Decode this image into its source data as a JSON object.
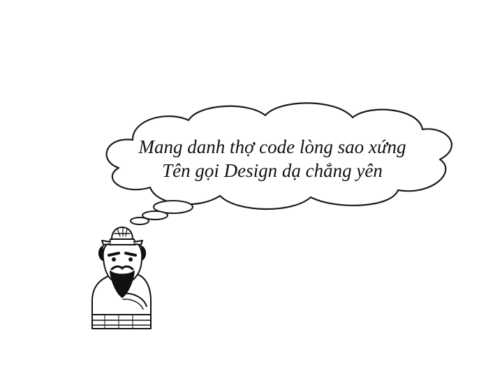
{
  "thought_bubble": {
    "line1": "Mang danh thợ code lòng sao xứng",
    "line2": "Tên gọi Design dạ chẳng yên"
  },
  "character": {
    "icon": "mandarin-character-icon"
  },
  "colors": {
    "background": "#ffffff",
    "ink": "#111111"
  }
}
